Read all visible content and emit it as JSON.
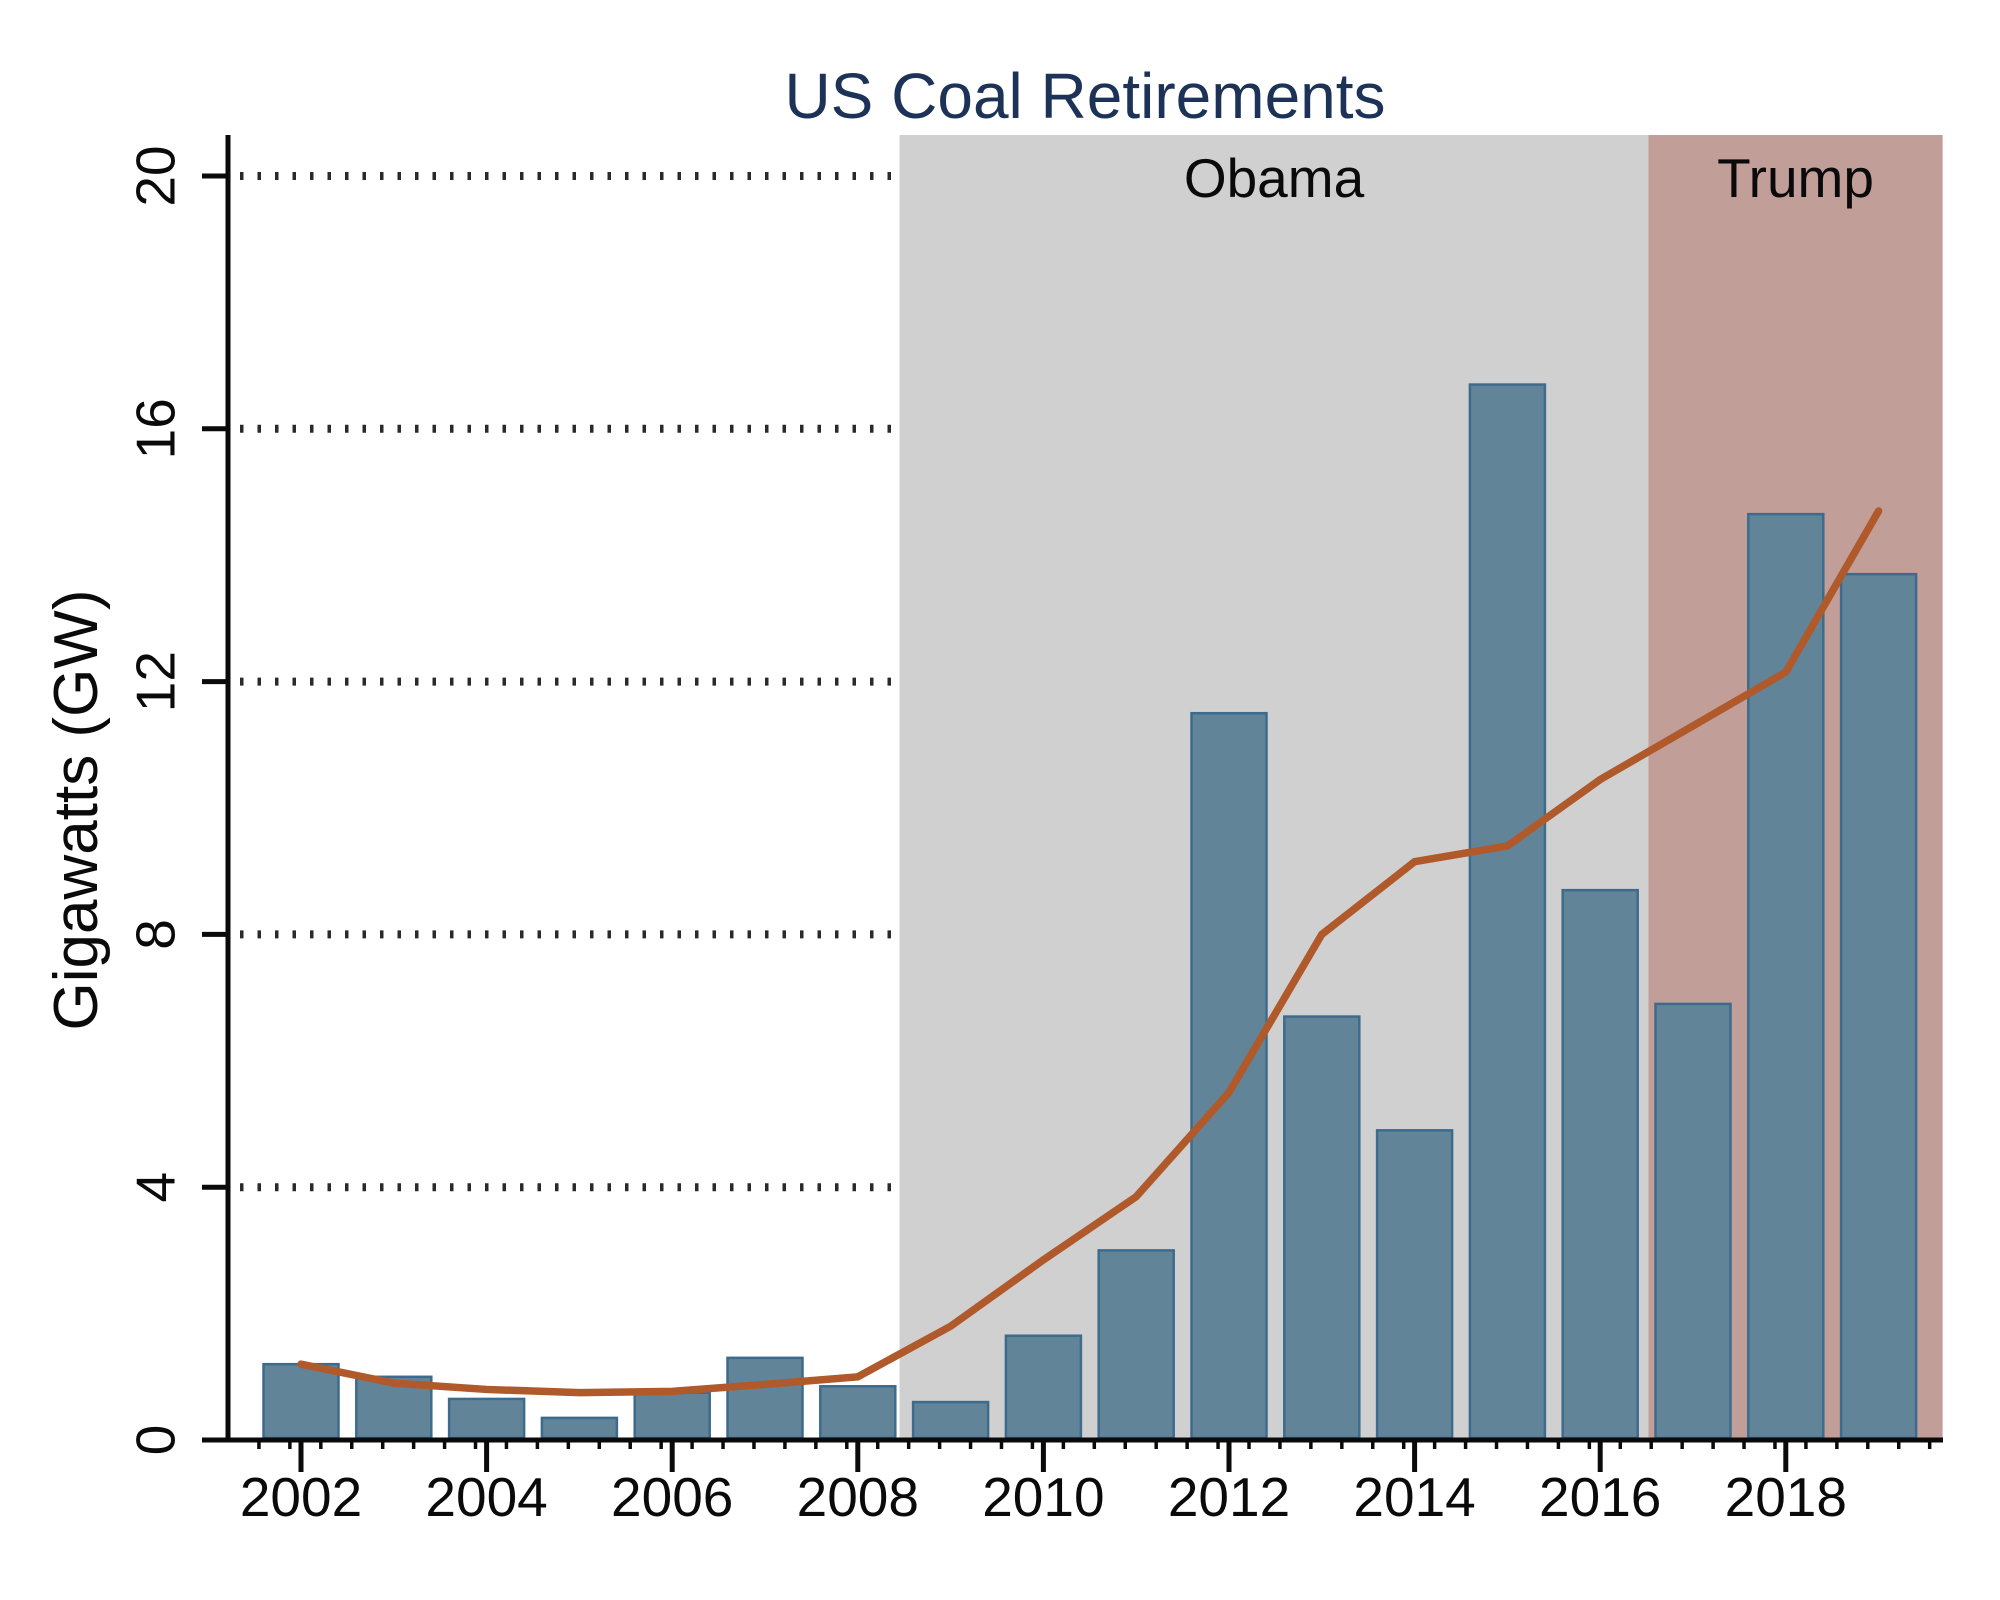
{
  "title": "US Coal Retirements",
  "chart_data": {
    "type": "bar",
    "title": "US Coal Retirements",
    "xlabel": "",
    "ylabel": "Gigawatts (GW)",
    "ylim": [
      0,
      20.6
    ],
    "ytick_values": [
      0,
      4,
      8,
      12,
      16,
      20
    ],
    "xtick_labeled_years": [
      2002,
      2004,
      2006,
      2008,
      2010,
      2012,
      2014,
      2016,
      2018
    ],
    "minor_xtick_interval_years": 0.1667,
    "grid": "dotted horizontal at labeled y ticks",
    "legend": "none",
    "categories": [
      2002,
      2003,
      2004,
      2005,
      2006,
      2007,
      2008,
      2009,
      2010,
      2011,
      2012,
      2013,
      2014,
      2015,
      2016,
      2017,
      2018,
      2019
    ],
    "series": [
      {
        "name": "annual-coal-retirements-bars",
        "type": "bar",
        "values": [
          1.2,
          1.0,
          0.65,
          0.35,
          0.75,
          1.3,
          0.85,
          0.6,
          1.65,
          3.0,
          11.5,
          6.7,
          4.9,
          16.7,
          8.7,
          6.9,
          14.65,
          13.7
        ]
      },
      {
        "name": "smoothed-trend-line",
        "type": "line",
        "values": [
          1.2,
          0.9,
          0.8,
          0.75,
          0.77,
          0.88,
          1.0,
          1.8,
          2.85,
          3.85,
          5.5,
          8.0,
          9.15,
          9.4,
          10.45,
          11.3,
          12.15,
          14.7
        ]
      }
    ],
    "annotations": [
      {
        "label": "Obama",
        "year_from": 2008.45,
        "year_to": 2016.52,
        "color": "#d0d0d0"
      },
      {
        "label": "Trump",
        "year_from": 2016.52,
        "year_to": 2019.69,
        "color": "#c29e98"
      }
    ]
  },
  "colors": {
    "background": "#ffffff",
    "bar_fill": "#628499",
    "bar_stroke": "#3d6b8c",
    "trend_line": "#b05a2c",
    "obama_shading": "#d0d0d0",
    "trump_shading": "#c29e98",
    "title_text": "#1d3257",
    "axis_and_labels": "#0a0a0a",
    "gridline_dots": "#2a2a2a"
  }
}
